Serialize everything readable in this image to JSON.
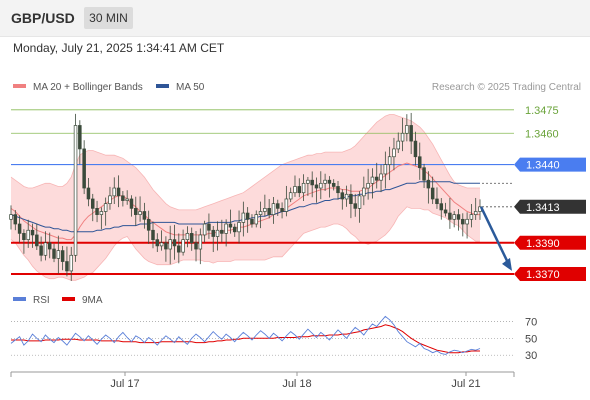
{
  "header": {
    "symbol": "GBP/USD",
    "timeframe": "30 MIN",
    "datetime": "Monday, July 21, 2025 1:34:41 AM CET"
  },
  "colors": {
    "ma20": "#f08080",
    "ma50": "#2f5597",
    "band_fill": "#fdd5d5",
    "candle": "#3b4a3b",
    "rsi": "#5a7fd8",
    "rsi_ma": "#e00000",
    "target_line": "#88bb55",
    "resistance": "#4a7df0",
    "support": "#e00000",
    "last_price": "#333333",
    "arrow": "#2b5a9a"
  },
  "price_legend": [
    {
      "label": "MA 20 + Bollinger Bands",
      "color": "#f08080"
    },
    {
      "label": "MA 50",
      "color": "#2f5597"
    }
  ],
  "rsi_legend": [
    {
      "label": "RSI",
      "color": "#5a7fd8"
    },
    {
      "label": "9MA",
      "color": "#e00000"
    }
  ],
  "watermark": "Research © 2025 Trading Central",
  "chart_data": {
    "type": "candlestick",
    "price_axis": {
      "min": 1.3363,
      "max": 1.348
    },
    "levels": [
      {
        "value": 1.3475,
        "label": "1.3475",
        "style": "target"
      },
      {
        "value": 1.346,
        "label": "1.3460",
        "style": "target"
      },
      {
        "value": 1.344,
        "label": "1.3440",
        "style": "resistance"
      },
      {
        "value": 1.3413,
        "label": "1.3413",
        "style": "last"
      },
      {
        "value": 1.339,
        "label": "1.3390",
        "style": "support"
      },
      {
        "value": 1.337,
        "label": "1.3370",
        "style": "support"
      }
    ],
    "price_path": [
      1.3408,
      1.3402,
      1.3396,
      1.3392,
      1.3398,
      1.3395,
      1.3388,
      1.3382,
      1.339,
      1.3386,
      1.338,
      1.3385,
      1.3378,
      1.3372,
      1.3382,
      1.3465,
      1.345,
      1.3425,
      1.3418,
      1.3412,
      1.3408,
      1.341,
      1.3415,
      1.342,
      1.3425,
      1.342,
      1.3417,
      1.3418,
      1.3412,
      1.3408,
      1.341,
      1.3405,
      1.3398,
      1.3392,
      1.3388,
      1.339,
      1.3386,
      1.3392,
      1.3388,
      1.3384,
      1.3392,
      1.3396,
      1.339,
      1.3386,
      1.3395,
      1.3402,
      1.3398,
      1.3394,
      1.3398,
      1.3396,
      1.3402,
      1.34,
      1.3397,
      1.3403,
      1.3409,
      1.3405,
      1.3402,
      1.3408,
      1.341,
      1.3412,
      1.3408,
      1.3415,
      1.3412,
      1.341,
      1.3418,
      1.3422,
      1.3426,
      1.3422,
      1.3428,
      1.343,
      1.3427,
      1.3425,
      1.3428,
      1.343,
      1.3428,
      1.3426,
      1.3422,
      1.3418,
      1.3421,
      1.3415,
      1.3412,
      1.342,
      1.3425,
      1.3428,
      1.3432,
      1.343,
      1.3434,
      1.344,
      1.3445,
      1.345,
      1.3455,
      1.346,
      1.3465,
      1.3455,
      1.3445,
      1.3438,
      1.343,
      1.3425,
      1.3418,
      1.3415,
      1.3411,
      1.3409,
      1.3405,
      1.3408,
      1.3405,
      1.3402,
      1.3405,
      1.3408,
      1.341,
      1.3413
    ],
    "ma20": [
      1.3412,
      1.341,
      1.3407,
      1.3404,
      1.3402,
      1.34,
      1.3398,
      1.3397,
      1.3396,
      1.3395,
      1.3394,
      1.3393,
      1.3393,
      1.3392,
      1.3392,
      1.3395,
      1.34,
      1.3404,
      1.3407,
      1.3409,
      1.3411,
      1.3413,
      1.3415,
      1.3417,
      1.3419,
      1.342,
      1.342,
      1.3418,
      1.3415,
      1.3413,
      1.341,
      1.3408,
      1.3405,
      1.3403,
      1.3401,
      1.3399,
      1.3397,
      1.3396,
      1.3395,
      1.3395,
      1.3395,
      1.3395,
      1.3395,
      1.3395,
      1.3395,
      1.3395,
      1.3396,
      1.3396,
      1.3397,
      1.3397,
      1.3398,
      1.3398,
      1.3399,
      1.34,
      1.34,
      1.3401,
      1.3402,
      1.3403,
      1.3404,
      1.3405,
      1.3406,
      1.3408,
      1.3409,
      1.341,
      1.3412,
      1.3414,
      1.3416,
      1.3418,
      1.342,
      1.3421,
      1.3422,
      1.3423,
      1.3424,
      1.3424,
      1.3425,
      1.3425,
      1.3425,
      1.3424,
      1.3424,
      1.3423,
      1.3423,
      1.3423,
      1.3424,
      1.3425,
      1.3427,
      1.3429,
      1.3431,
      1.3433,
      1.3435,
      1.3437,
      1.3439,
      1.344,
      1.3441,
      1.344,
      1.3439,
      1.3438,
      1.3436,
      1.3434,
      1.3431,
      1.3428,
      1.3425,
      1.3422,
      1.3419,
      1.3416,
      1.3414,
      1.3412,
      1.341,
      1.3409,
      1.3408,
      1.3408
    ],
    "band_upper": [
      1.3432,
      1.343,
      1.3428,
      1.3426,
      1.3425,
      1.3425,
      1.3426,
      1.3427,
      1.3428,
      1.3428,
      1.3427,
      1.3426,
      1.3426,
      1.3428,
      1.3432,
      1.344,
      1.3446,
      1.3448,
      1.3449,
      1.3449,
      1.3448,
      1.3447,
      1.3446,
      1.3446,
      1.3446,
      1.3445,
      1.3444,
      1.3442,
      1.344,
      1.3438,
      1.3435,
      1.3432,
      1.3428,
      1.3424,
      1.3421,
      1.3418,
      1.3415,
      1.3413,
      1.3412,
      1.3411,
      1.3411,
      1.3411,
      1.3411,
      1.3411,
      1.3412,
      1.3413,
      1.3414,
      1.3415,
      1.3416,
      1.3417,
      1.3418,
      1.3419,
      1.342,
      1.3421,
      1.3422,
      1.3424,
      1.3426,
      1.3428,
      1.343,
      1.3432,
      1.3434,
      1.3436,
      1.3438,
      1.344,
      1.3441,
      1.3442,
      1.3443,
      1.3444,
      1.3445,
      1.3446,
      1.3446,
      1.3447,
      1.3447,
      1.3448,
      1.3448,
      1.3448,
      1.3448,
      1.3448,
      1.3449,
      1.345,
      1.3452,
      1.3455,
      1.3458,
      1.3461,
      1.3464,
      1.3467,
      1.3469,
      1.3471,
      1.3472,
      1.3472,
      1.3471,
      1.347,
      1.3469,
      1.3468,
      1.3466,
      1.3464,
      1.3461,
      1.3457,
      1.3453,
      1.3448,
      1.3443,
      1.3438,
      1.3433,
      1.3429,
      1.3427,
      1.3426,
      1.3425,
      1.3425,
      1.3425,
      1.3425
    ],
    "band_lower": [
      1.3392,
      1.339,
      1.3386,
      1.3382,
      1.3379,
      1.3375,
      1.3372,
      1.337,
      1.3368,
      1.3367,
      1.3367,
      1.3368,
      1.3368,
      1.3367,
      1.3366,
      1.3366,
      1.3367,
      1.3368,
      1.337,
      1.3371,
      1.3374,
      1.3377,
      1.338,
      1.3384,
      1.3388,
      1.3391,
      1.3393,
      1.3394,
      1.339,
      1.3386,
      1.3383,
      1.338,
      1.3378,
      1.3377,
      1.3376,
      1.3376,
      1.3376,
      1.3376,
      1.3377,
      1.3378,
      1.3379,
      1.3379,
      1.3379,
      1.3379,
      1.3379,
      1.3378,
      1.3378,
      1.3377,
      1.3378,
      1.3378,
      1.3378,
      1.3378,
      1.3379,
      1.3379,
      1.3379,
      1.3379,
      1.3379,
      1.3379,
      1.3379,
      1.3379,
      1.338,
      1.3381,
      1.3381,
      1.3381,
      1.3384,
      1.3387,
      1.339,
      1.3393,
      1.3396,
      1.3397,
      1.3398,
      1.3399,
      1.34,
      1.34,
      1.3401,
      1.3402,
      1.3402,
      1.3401,
      1.3399,
      1.3396,
      1.3394,
      1.3391,
      1.339,
      1.3389,
      1.339,
      1.3391,
      1.3393,
      1.3395,
      1.3398,
      1.3402,
      1.3407,
      1.341,
      1.3413,
      1.3412,
      1.3412,
      1.3412,
      1.3411,
      1.3411,
      1.3409,
      1.3408,
      1.3407,
      1.3406,
      1.3404,
      1.3402,
      1.3401,
      1.3398,
      1.3395,
      1.3393,
      1.3391,
      1.3391
    ],
    "ma50": [
      1.3408,
      1.3407,
      1.3406,
      1.3405,
      1.3404,
      1.3403,
      1.3402,
      1.3401,
      1.34,
      1.34,
      1.3399,
      1.3399,
      1.3398,
      1.3398,
      1.3397,
      1.3397,
      1.3397,
      1.3397,
      1.3397,
      1.3397,
      1.3398,
      1.3398,
      1.3399,
      1.3399,
      1.34,
      1.34,
      1.3401,
      1.3401,
      1.3401,
      1.3401,
      1.3402,
      1.3402,
      1.3402,
      1.3403,
      1.3403,
      1.3403,
      1.3403,
      1.3403,
      1.3403,
      1.3402,
      1.3402,
      1.3402,
      1.3402,
      1.3402,
      1.3402,
      1.3402,
      1.3403,
      1.3403,
      1.3403,
      1.3403,
      1.3403,
      1.3403,
      1.3404,
      1.3404,
      1.3405,
      1.3405,
      1.3406,
      1.3406,
      1.3407,
      1.3407,
      1.3408,
      1.3408,
      1.3409,
      1.341,
      1.341,
      1.3411,
      1.3412,
      1.3413,
      1.3413,
      1.3414,
      1.3415,
      1.3415,
      1.3416,
      1.3417,
      1.3417,
      1.3418,
      1.3418,
      1.3419,
      1.3419,
      1.342,
      1.342,
      1.3421,
      1.3421,
      1.3422,
      1.3422,
      1.3423,
      1.3423,
      1.3424,
      1.3424,
      1.3425,
      1.3426,
      1.3427,
      1.3428,
      1.3428,
      1.3428,
      1.3429,
      1.3429,
      1.3429,
      1.3429,
      1.3429,
      1.3429,
      1.3429,
      1.3429,
      1.3428,
      1.3428,
      1.3428,
      1.3428,
      1.3428,
      1.3428,
      1.3428
    ],
    "projection": {
      "from": 1.3413,
      "to": 1.3372
    },
    "rsi_axis": {
      "min": 22,
      "max": 80,
      "ticks": [
        70,
        50,
        30
      ]
    },
    "rsi": [
      44,
      48,
      52,
      42,
      47,
      55,
      50,
      46,
      54,
      49,
      45,
      51,
      47,
      42,
      49,
      56,
      52,
      47,
      53,
      48,
      43,
      49,
      54,
      50,
      45,
      52,
      57,
      51,
      46,
      53,
      50,
      45,
      51,
      47,
      42,
      48,
      53,
      49,
      45,
      52,
      47,
      43,
      50,
      55,
      51,
      46,
      52,
      58,
      53,
      49,
      55,
      51,
      46,
      52,
      57,
      53,
      48,
      54,
      59,
      55,
      50,
      56,
      52,
      47,
      53,
      58,
      54,
      49,
      55,
      61,
      56,
      51,
      57,
      53,
      48,
      54,
      60,
      55,
      50,
      57,
      63,
      59,
      54,
      61,
      67,
      64,
      70,
      76,
      72,
      66,
      58,
      52,
      46,
      43,
      40,
      44,
      38,
      36,
      33,
      35,
      32,
      31,
      34,
      36,
      35,
      33,
      35,
      37,
      36,
      38
    ],
    "rsi_ma": [
      48,
      48,
      48,
      48,
      47,
      47,
      47,
      47,
      48,
      48,
      48,
      48,
      49,
      49,
      49,
      49,
      48,
      48,
      48,
      48,
      48,
      47,
      47,
      47,
      47,
      47,
      46,
      46,
      46,
      46,
      45,
      45,
      45,
      45,
      45,
      46,
      46,
      46,
      46,
      46,
      46,
      46,
      46,
      45,
      45,
      45,
      46,
      46,
      47,
      47,
      48,
      48,
      49,
      49,
      50,
      50,
      50,
      50,
      50,
      50,
      50,
      50,
      51,
      51,
      51,
      51,
      51,
      52,
      52,
      52,
      53,
      53,
      53,
      53,
      54,
      54,
      54,
      55,
      55,
      56,
      57,
      58,
      60,
      61,
      62,
      63,
      64,
      66,
      65,
      63,
      61,
      58,
      54,
      50,
      47,
      44,
      42,
      40,
      38,
      36,
      35,
      34,
      33,
      33,
      33,
      34,
      34,
      35,
      35,
      35
    ],
    "x_labels": [
      "Jul 17",
      "Jul 18",
      "Jul 21"
    ]
  }
}
